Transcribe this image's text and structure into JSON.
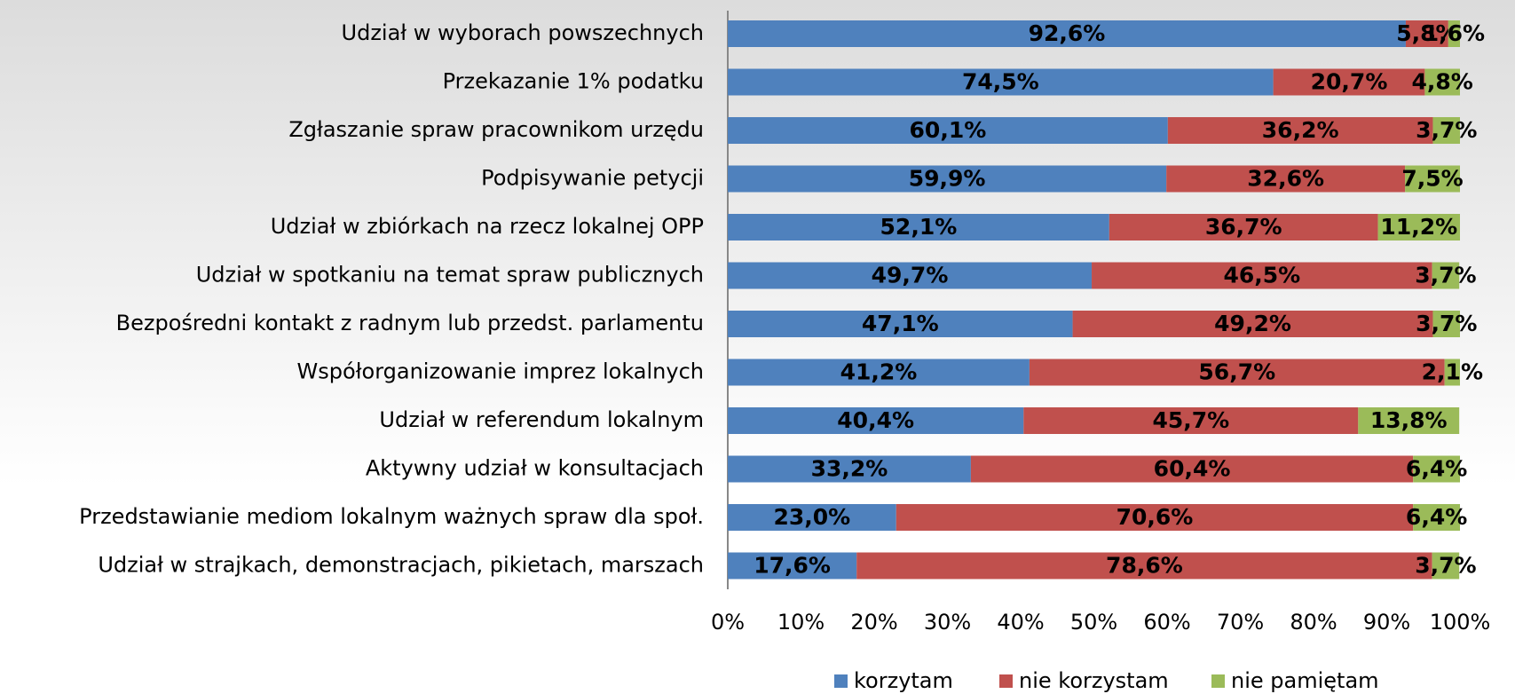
{
  "chart_data": {
    "type": "stacked-barh",
    "categories": [
      "Udział w wyborach powszechnych",
      "Przekazanie 1% podatku",
      "Zgłaszanie spraw pracownikom urzędu",
      "Podpisywanie petycji",
      "Udział w zbiórkach na rzecz lokalnej OPP",
      "Udział w spotkaniu na temat spraw publicznych",
      "Bezpośredni kontakt z radnym lub przedst. parlamentu",
      "Współorganizowanie imprez lokalnych",
      "Udział w referendum lokalnym",
      "Aktywny udział w konsultacjach",
      "Przedstawianie mediom lokalnym ważnych spraw dla społ.",
      "Udział w strajkach, demonstracjach, pikietach, marszach"
    ],
    "series": [
      {
        "name": "korzytam",
        "color": "#4f81bd",
        "values": [
          92.6,
          74.5,
          60.1,
          59.9,
          52.1,
          49.7,
          47.1,
          41.2,
          40.4,
          33.2,
          23.0,
          17.6
        ],
        "value_labels": [
          "92,6%",
          "74,5%",
          "60,1%",
          "59,9%",
          "52,1%",
          "49,7%",
          "47,1%",
          "41,2%",
          "40,4%",
          "33,2%",
          "23,0%",
          "17,6%"
        ]
      },
      {
        "name": "nie korzystam",
        "color": "#c0504d",
        "values": [
          5.8,
          20.7,
          36.2,
          32.6,
          36.7,
          46.5,
          49.2,
          56.7,
          45.7,
          60.4,
          70.6,
          78.6
        ],
        "value_labels": [
          "5,8%",
          "20,7%",
          "36,2%",
          "32,6%",
          "36,7%",
          "46,5%",
          "49,2%",
          "56,7%",
          "45,7%",
          "60,4%",
          "70,6%",
          "78,6%"
        ]
      },
      {
        "name": "nie pamiętam",
        "color": "#9bbb59",
        "values": [
          1.6,
          4.8,
          3.7,
          7.5,
          11.2,
          3.7,
          3.7,
          2.1,
          13.8,
          6.4,
          6.4,
          3.7
        ],
        "value_labels": [
          "1,6%",
          "4,8%",
          "3,7%",
          "7,5%",
          "11,2%",
          "3,7%",
          "3,7%",
          "2,1%",
          "13,8%",
          "6,4%",
          "6,4%",
          "3,7%"
        ]
      }
    ],
    "xlim": [
      0,
      100
    ],
    "xticks": [
      {
        "value": 0,
        "label": "0%"
      },
      {
        "value": 10,
        "label": "10%"
      },
      {
        "value": 20,
        "label": "20%"
      },
      {
        "value": 30,
        "label": "30%"
      },
      {
        "value": 40,
        "label": "40%"
      },
      {
        "value": 50,
        "label": "50%"
      },
      {
        "value": 60,
        "label": "60%"
      },
      {
        "value": 70,
        "label": "70%"
      },
      {
        "value": 80,
        "label": "80%"
      },
      {
        "value": 90,
        "label": "90%"
      },
      {
        "value": 100,
        "label": "100%"
      }
    ],
    "legend": "bottom"
  }
}
